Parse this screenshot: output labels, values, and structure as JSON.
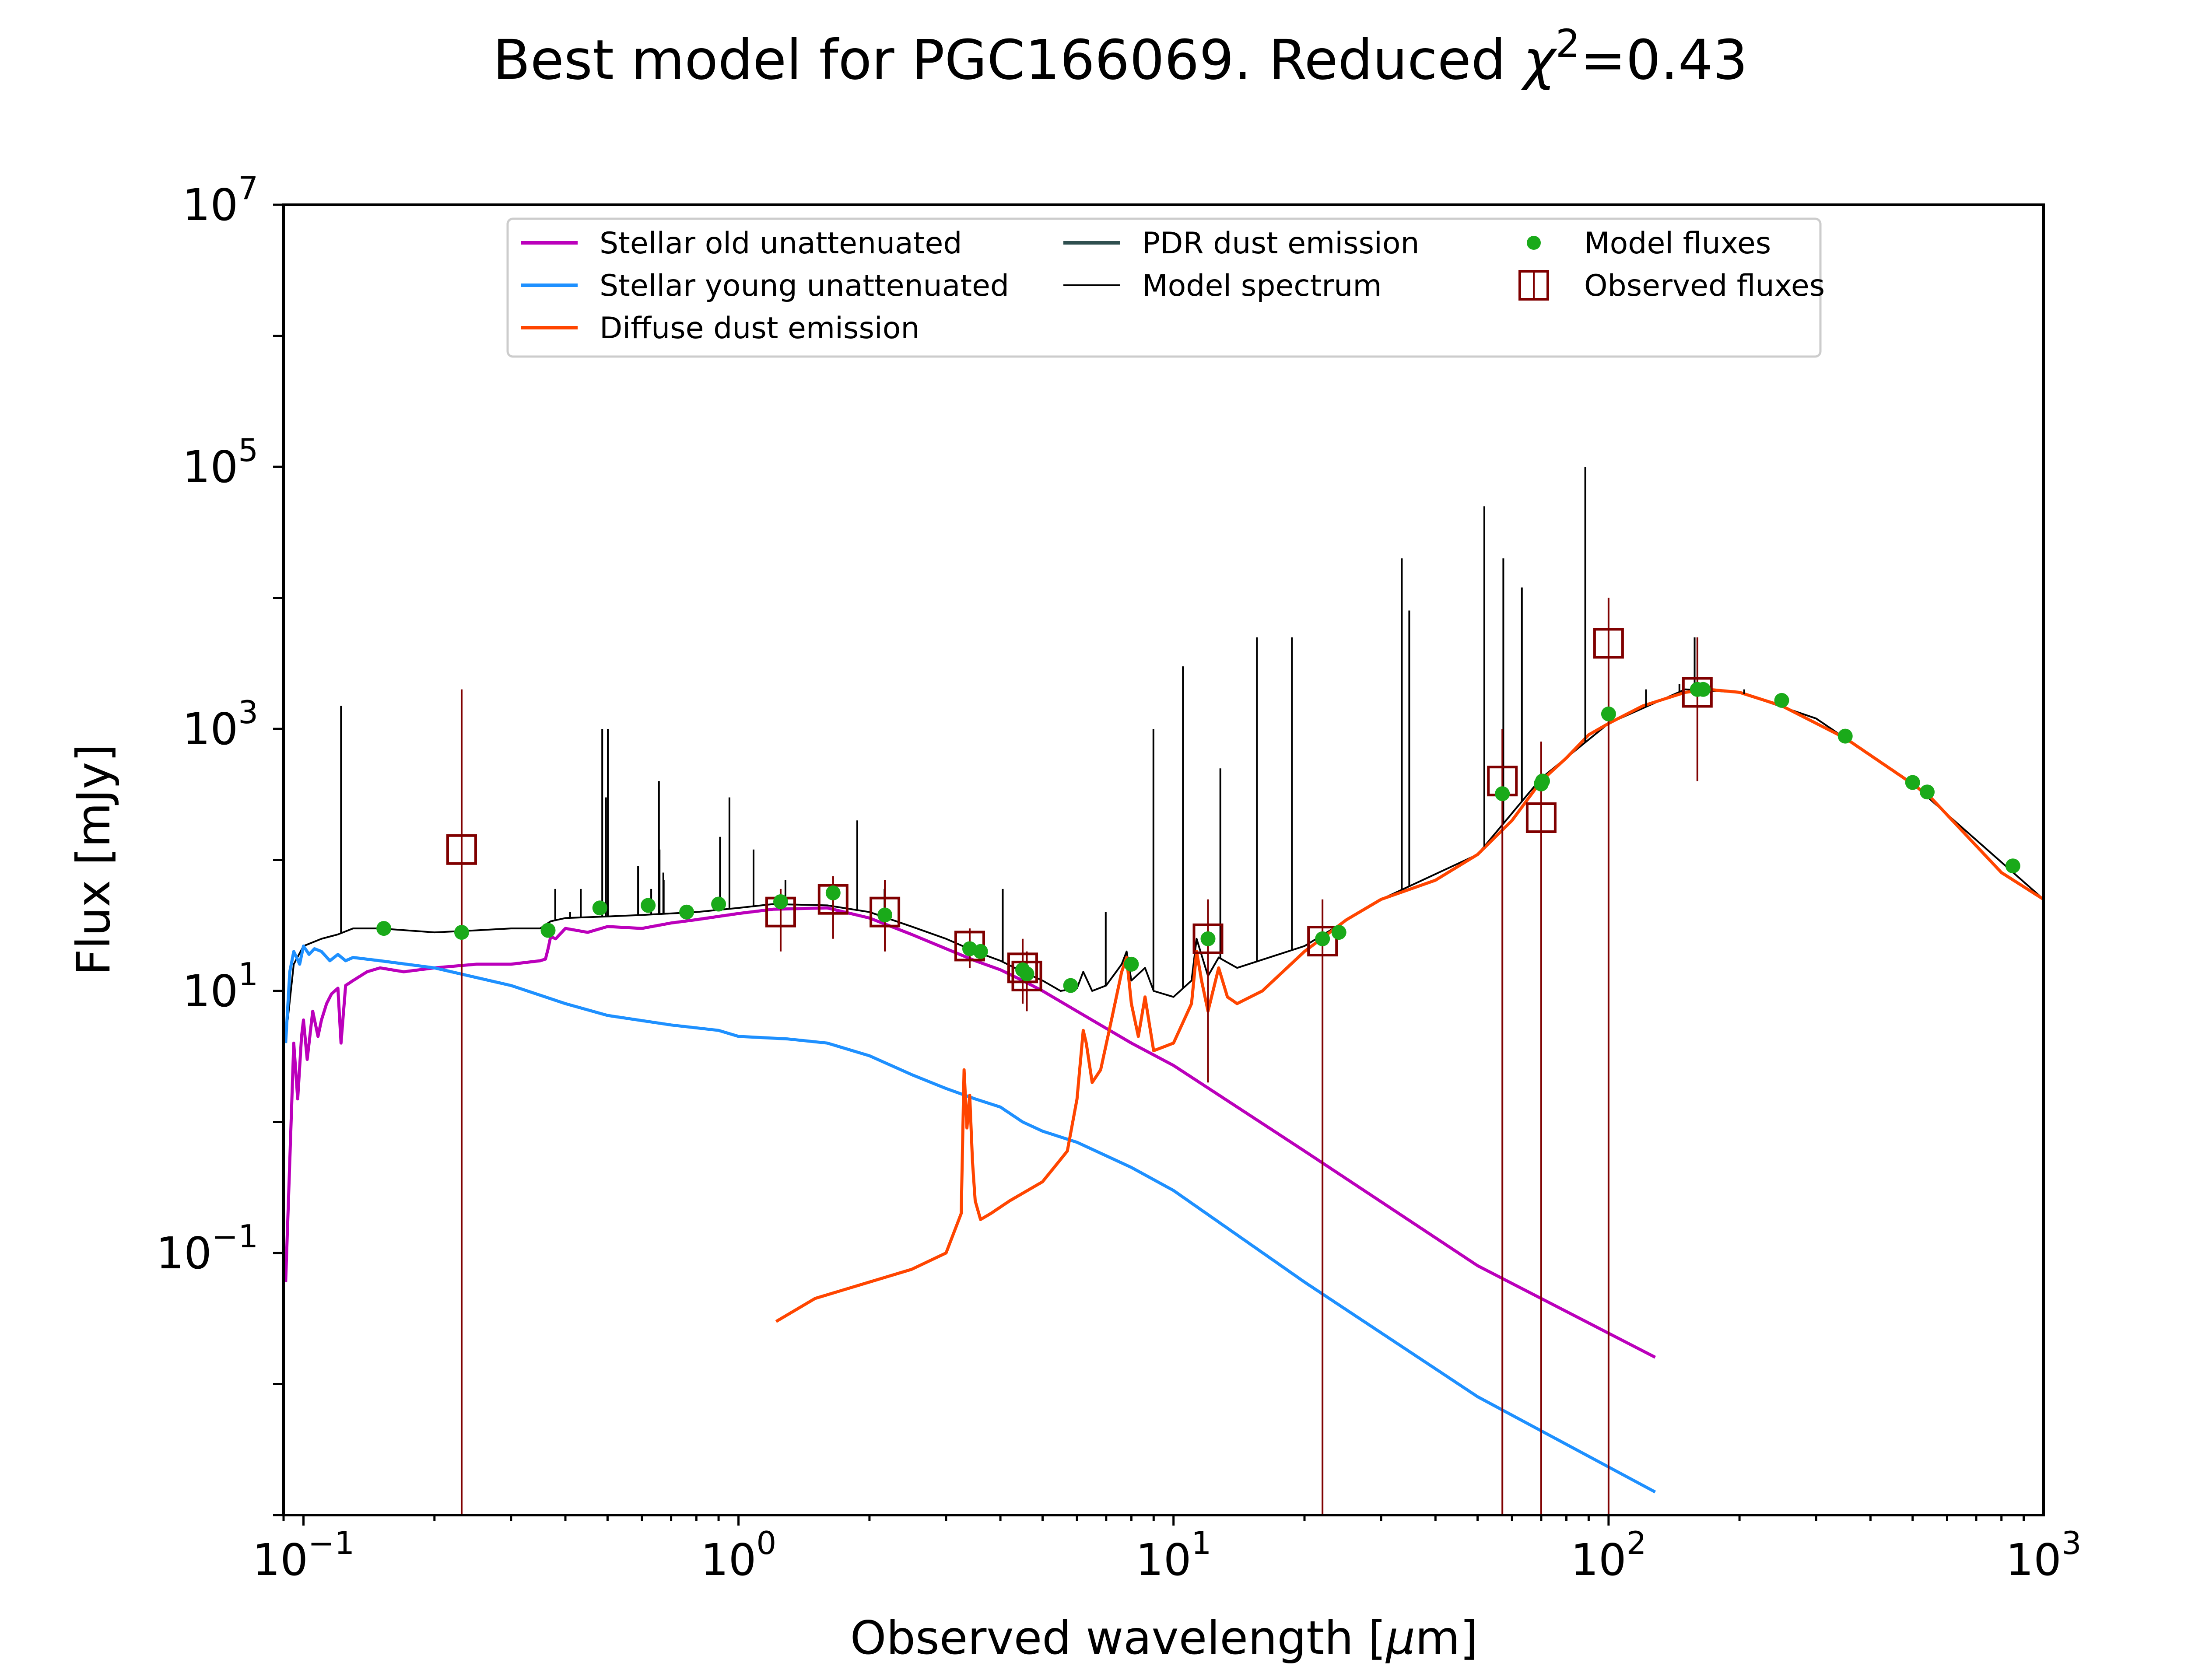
{
  "chart_data": {
    "type": "line",
    "title": "Best model for PGC166069. Reduced χ²=0.43",
    "title_parts": {
      "main": "Best model for PGC166069. Reduced ",
      "chi": "χ",
      "sup": "2",
      "rest": "=0.43"
    },
    "xlabel": "Observed wavelength [μm]",
    "xlabel_parts": {
      "main": "Observed wavelength [",
      "mu": "μ",
      "rest": "m]"
    },
    "ylabel": "Flux [mJy]",
    "x_scale": "log",
    "y_scale": "log",
    "xlim": [
      0.09,
      1000
    ],
    "ylim": [
      0.001,
      10000000
    ],
    "grid": false,
    "legend_position": "top-center",
    "x_ticks": [
      {
        "value": 0.1,
        "base": "10",
        "exp": "−1"
      },
      {
        "value": 1,
        "base": "10",
        "exp": "0"
      },
      {
        "value": 10,
        "base": "10",
        "exp": "1"
      },
      {
        "value": 100,
        "base": "10",
        "exp": "2"
      },
      {
        "value": 1000,
        "base": "10",
        "exp": "3"
      }
    ],
    "y_ticks": [
      {
        "value": 0.1,
        "base": "10",
        "exp": "−1"
      },
      {
        "value": 10,
        "base": "10",
        "exp": "1"
      },
      {
        "value": 1000,
        "base": "10",
        "exp": "3"
      },
      {
        "value": 100000,
        "base": "10",
        "exp": "5"
      },
      {
        "value": 10000000,
        "base": "10",
        "exp": "7"
      }
    ],
    "legend": [
      {
        "label": "Stellar old unattenuated",
        "kind": "line",
        "color": "#bb00bb"
      },
      {
        "label": "Stellar young unattenuated",
        "kind": "line",
        "color": "#1e90ff"
      },
      {
        "label": "Diffuse dust emission",
        "kind": "line",
        "color": "#ff4500"
      },
      {
        "label": "PDR dust emission",
        "kind": "line",
        "color": "#2f4f4f"
      },
      {
        "label": "Model spectrum",
        "kind": "line-thin",
        "color": "#000000"
      },
      {
        "label": "Model fluxes",
        "kind": "dot",
        "color": "#1aaa1a"
      },
      {
        "label": "Observed fluxes",
        "kind": "square",
        "color": "#800000"
      }
    ],
    "series": [
      {
        "name": "Stellar old unattenuated",
        "color": "#bb00bb",
        "x": [
          0.091,
          0.093,
          0.095,
          0.097,
          0.099,
          0.1,
          0.102,
          0.105,
          0.108,
          0.11,
          0.113,
          0.116,
          0.12,
          0.122,
          0.125,
          0.13,
          0.14,
          0.15,
          0.17,
          0.2,
          0.25,
          0.3,
          0.35,
          0.36,
          0.365,
          0.37,
          0.38,
          0.4,
          0.45,
          0.5,
          0.6,
          0.7,
          0.8,
          1.0,
          1.2,
          1.6,
          2.0,
          2.5,
          3.0,
          3.5,
          4.0,
          4.5,
          5.0,
          6.0,
          8.0,
          10.0,
          20.0,
          50.0,
          128.0
        ],
        "y": [
          0.06,
          0.5,
          4.0,
          1.5,
          4.5,
          6.0,
          3.0,
          7.0,
          4.5,
          6.0,
          8.0,
          9.5,
          10.5,
          4.0,
          11.0,
          12.0,
          14.0,
          15.0,
          14.0,
          15.0,
          16.0,
          16.0,
          17.0,
          17.5,
          21.0,
          26.0,
          25.0,
          30.0,
          28.0,
          31.0,
          30.0,
          33.0,
          35.0,
          39.0,
          42.0,
          43.0,
          36.0,
          27.0,
          21.0,
          17.0,
          14.5,
          12.0,
          10.0,
          7.0,
          4.0,
          2.7,
          0.6,
          0.08,
          0.016
        ]
      },
      {
        "name": "Stellar young unattenuated",
        "color": "#1e90ff",
        "x": [
          0.091,
          0.093,
          0.095,
          0.098,
          0.1,
          0.103,
          0.106,
          0.11,
          0.115,
          0.12,
          0.125,
          0.13,
          0.15,
          0.2,
          0.3,
          0.4,
          0.5,
          0.7,
          0.9,
          1.0,
          1.3,
          1.6,
          2.0,
          2.5,
          3.0,
          3.5,
          4.0,
          4.5,
          5.0,
          6.0,
          8.0,
          10.0,
          20.0,
          50.0,
          128.0
        ],
        "y": [
          4.0,
          14.0,
          20.0,
          16.0,
          22.0,
          19.0,
          21.0,
          20.0,
          17.0,
          19.0,
          17.0,
          18.0,
          17.0,
          15.0,
          11.0,
          8.0,
          6.5,
          5.5,
          5.0,
          4.5,
          4.3,
          4.0,
          3.2,
          2.3,
          1.8,
          1.5,
          1.3,
          1.0,
          0.85,
          0.7,
          0.45,
          0.3,
          0.06,
          0.008,
          0.0015
        ]
      },
      {
        "name": "Diffuse dust emission",
        "color": "#ff4500",
        "x": [
          1.22,
          1.5,
          2.0,
          2.5,
          3.0,
          3.25,
          3.3,
          3.35,
          3.4,
          3.45,
          3.5,
          3.6,
          3.8,
          4.2,
          5.0,
          5.7,
          6.0,
          6.2,
          6.3,
          6.5,
          6.8,
          7.2,
          7.6,
          7.8,
          8.0,
          8.3,
          8.6,
          9.0,
          10.0,
          11.0,
          11.3,
          11.6,
          12.0,
          12.7,
          13.3,
          14.0,
          16.0,
          20.0,
          25.0,
          30.0,
          40.0,
          50.0,
          60.0,
          70.0,
          80.0,
          90.0,
          100.0,
          120.0,
          150.0,
          170.0,
          200.0,
          250.0,
          350.0,
          500.0,
          550.0,
          800.0,
          1000.0
        ],
        "y": [
          0.03,
          0.045,
          0.06,
          0.075,
          0.1,
          0.2,
          2.5,
          0.9,
          1.6,
          0.5,
          0.25,
          0.18,
          0.2,
          0.25,
          0.35,
          0.6,
          1.5,
          5.0,
          4.0,
          2.0,
          2.5,
          6.0,
          14.0,
          18.0,
          8.0,
          4.5,
          9.0,
          3.5,
          4.0,
          8.0,
          20.0,
          12.0,
          7.0,
          15.0,
          9.0,
          8.0,
          10.0,
          20.0,
          35.0,
          50.0,
          70.0,
          110.0,
          200.0,
          400.0,
          600.0,
          900.0,
          1100.0,
          1500.0,
          1900.0,
          2000.0,
          1900.0,
          1500.0,
          850.0,
          380.0,
          300.0,
          80.0,
          50.0
        ]
      },
      {
        "name": "PDR dust emission",
        "color": "#2f4f4f",
        "x": [],
        "y": []
      },
      {
        "name": "Model spectrum",
        "color": "#000000",
        "x": [
          0.092,
          0.095,
          0.1,
          0.11,
          0.12,
          0.13,
          0.15,
          0.2,
          0.25,
          0.3,
          0.35,
          0.37,
          0.4,
          0.5,
          0.6,
          0.8,
          1.0,
          1.2,
          1.6,
          2.0,
          2.5,
          3.0,
          3.5,
          4.0,
          4.5,
          5.0,
          5.5,
          6.0,
          6.2,
          6.5,
          7.0,
          7.6,
          7.8,
          8.0,
          8.6,
          9.0,
          10.0,
          11.0,
          11.3,
          12.0,
          12.7,
          14.0,
          20.0,
          30.0,
          50.0,
          70.0,
          100.0,
          150.0,
          200.0,
          300.0,
          500.0,
          1000.0
        ],
        "y": [
          6.0,
          16.0,
          22.0,
          25.0,
          27.0,
          30.0,
          30.0,
          28.0,
          29.0,
          30.0,
          30.0,
          34.0,
          36.0,
          37.0,
          38.0,
          40.0,
          43.0,
          46.0,
          45.0,
          40.0,
          31.0,
          25.0,
          20.0,
          17.0,
          14.0,
          12.0,
          10.0,
          10.5,
          14.0,
          10.0,
          11.0,
          16.0,
          20.0,
          12.0,
          15.0,
          10.0,
          9.0,
          12.0,
          25.0,
          13.0,
          18.0,
          15.0,
          22.0,
          50.0,
          110.0,
          420.0,
          1100.0,
          2000.0,
          1900.0,
          1200.0,
          380.0,
          50.0
        ]
      }
    ],
    "emission_lines": {
      "x": [
        0.122,
        0.379,
        0.4101,
        0.4341,
        0.4861,
        0.4959,
        0.5007,
        0.5876,
        0.63,
        0.6563,
        0.6584,
        0.6717,
        0.6731,
        0.9069,
        0.9531,
        1.083,
        1.282,
        1.875,
        2.166,
        4.05,
        6.985,
        8.99,
        10.51,
        12.81,
        15.55,
        18.71,
        33.48,
        34.82,
        51.8,
        57.3,
        63.2,
        88.4,
        121.9,
        145.5,
        157.7,
        205.0
      ],
      "y": [
        1500,
        60,
        40,
        60,
        1000,
        300,
        1000,
        90,
        60,
        400,
        120,
        80,
        70,
        150,
        300,
        120,
        70,
        200,
        60,
        60,
        40,
        1000,
        3000,
        500,
        5000,
        5000,
        20000,
        8000,
        50000,
        20000,
        12000,
        100000,
        2000,
        2200,
        5000,
        2000
      ]
    },
    "model_fluxes": {
      "x": [
        0.153,
        0.231,
        0.365,
        0.48,
        0.62,
        0.76,
        0.9,
        1.25,
        1.65,
        2.17,
        3.4,
        3.6,
        4.5,
        4.6,
        5.8,
        8.0,
        12.0,
        22.0,
        24.0,
        57.0,
        70.0,
        70.5,
        100.0,
        160.0,
        165.0,
        250.0,
        350.0,
        500.0,
        540.0,
        850.0
      ],
      "y": [
        30,
        28,
        29,
        43,
        45,
        40,
        46,
        48,
        56,
        38,
        21,
        20,
        14.5,
        13.5,
        11,
        16,
        25,
        25,
        28,
        320,
        380,
        400,
        1300,
        2000,
        2000,
        1650,
        880,
        390,
        330,
        90
      ]
    },
    "observed_fluxes": {
      "x": [
        0.231,
        1.25,
        1.65,
        2.17,
        3.4,
        4.5,
        4.6,
        12.0,
        22.0,
        57.0,
        70.0,
        100.0,
        160.0
      ],
      "y": [
        120,
        40,
        50,
        40,
        22,
        15,
        13,
        25,
        24,
        400,
        210,
        4500,
        1900
      ],
      "err_low": [
        0.001,
        20,
        25,
        20,
        15,
        8,
        7,
        2,
        0.001,
        0.001,
        0.001,
        0.001,
        400
      ],
      "err_high": [
        2000,
        60,
        75,
        70,
        30,
        25,
        20,
        50,
        50,
        1000,
        800,
        10000,
        5000
      ]
    }
  }
}
